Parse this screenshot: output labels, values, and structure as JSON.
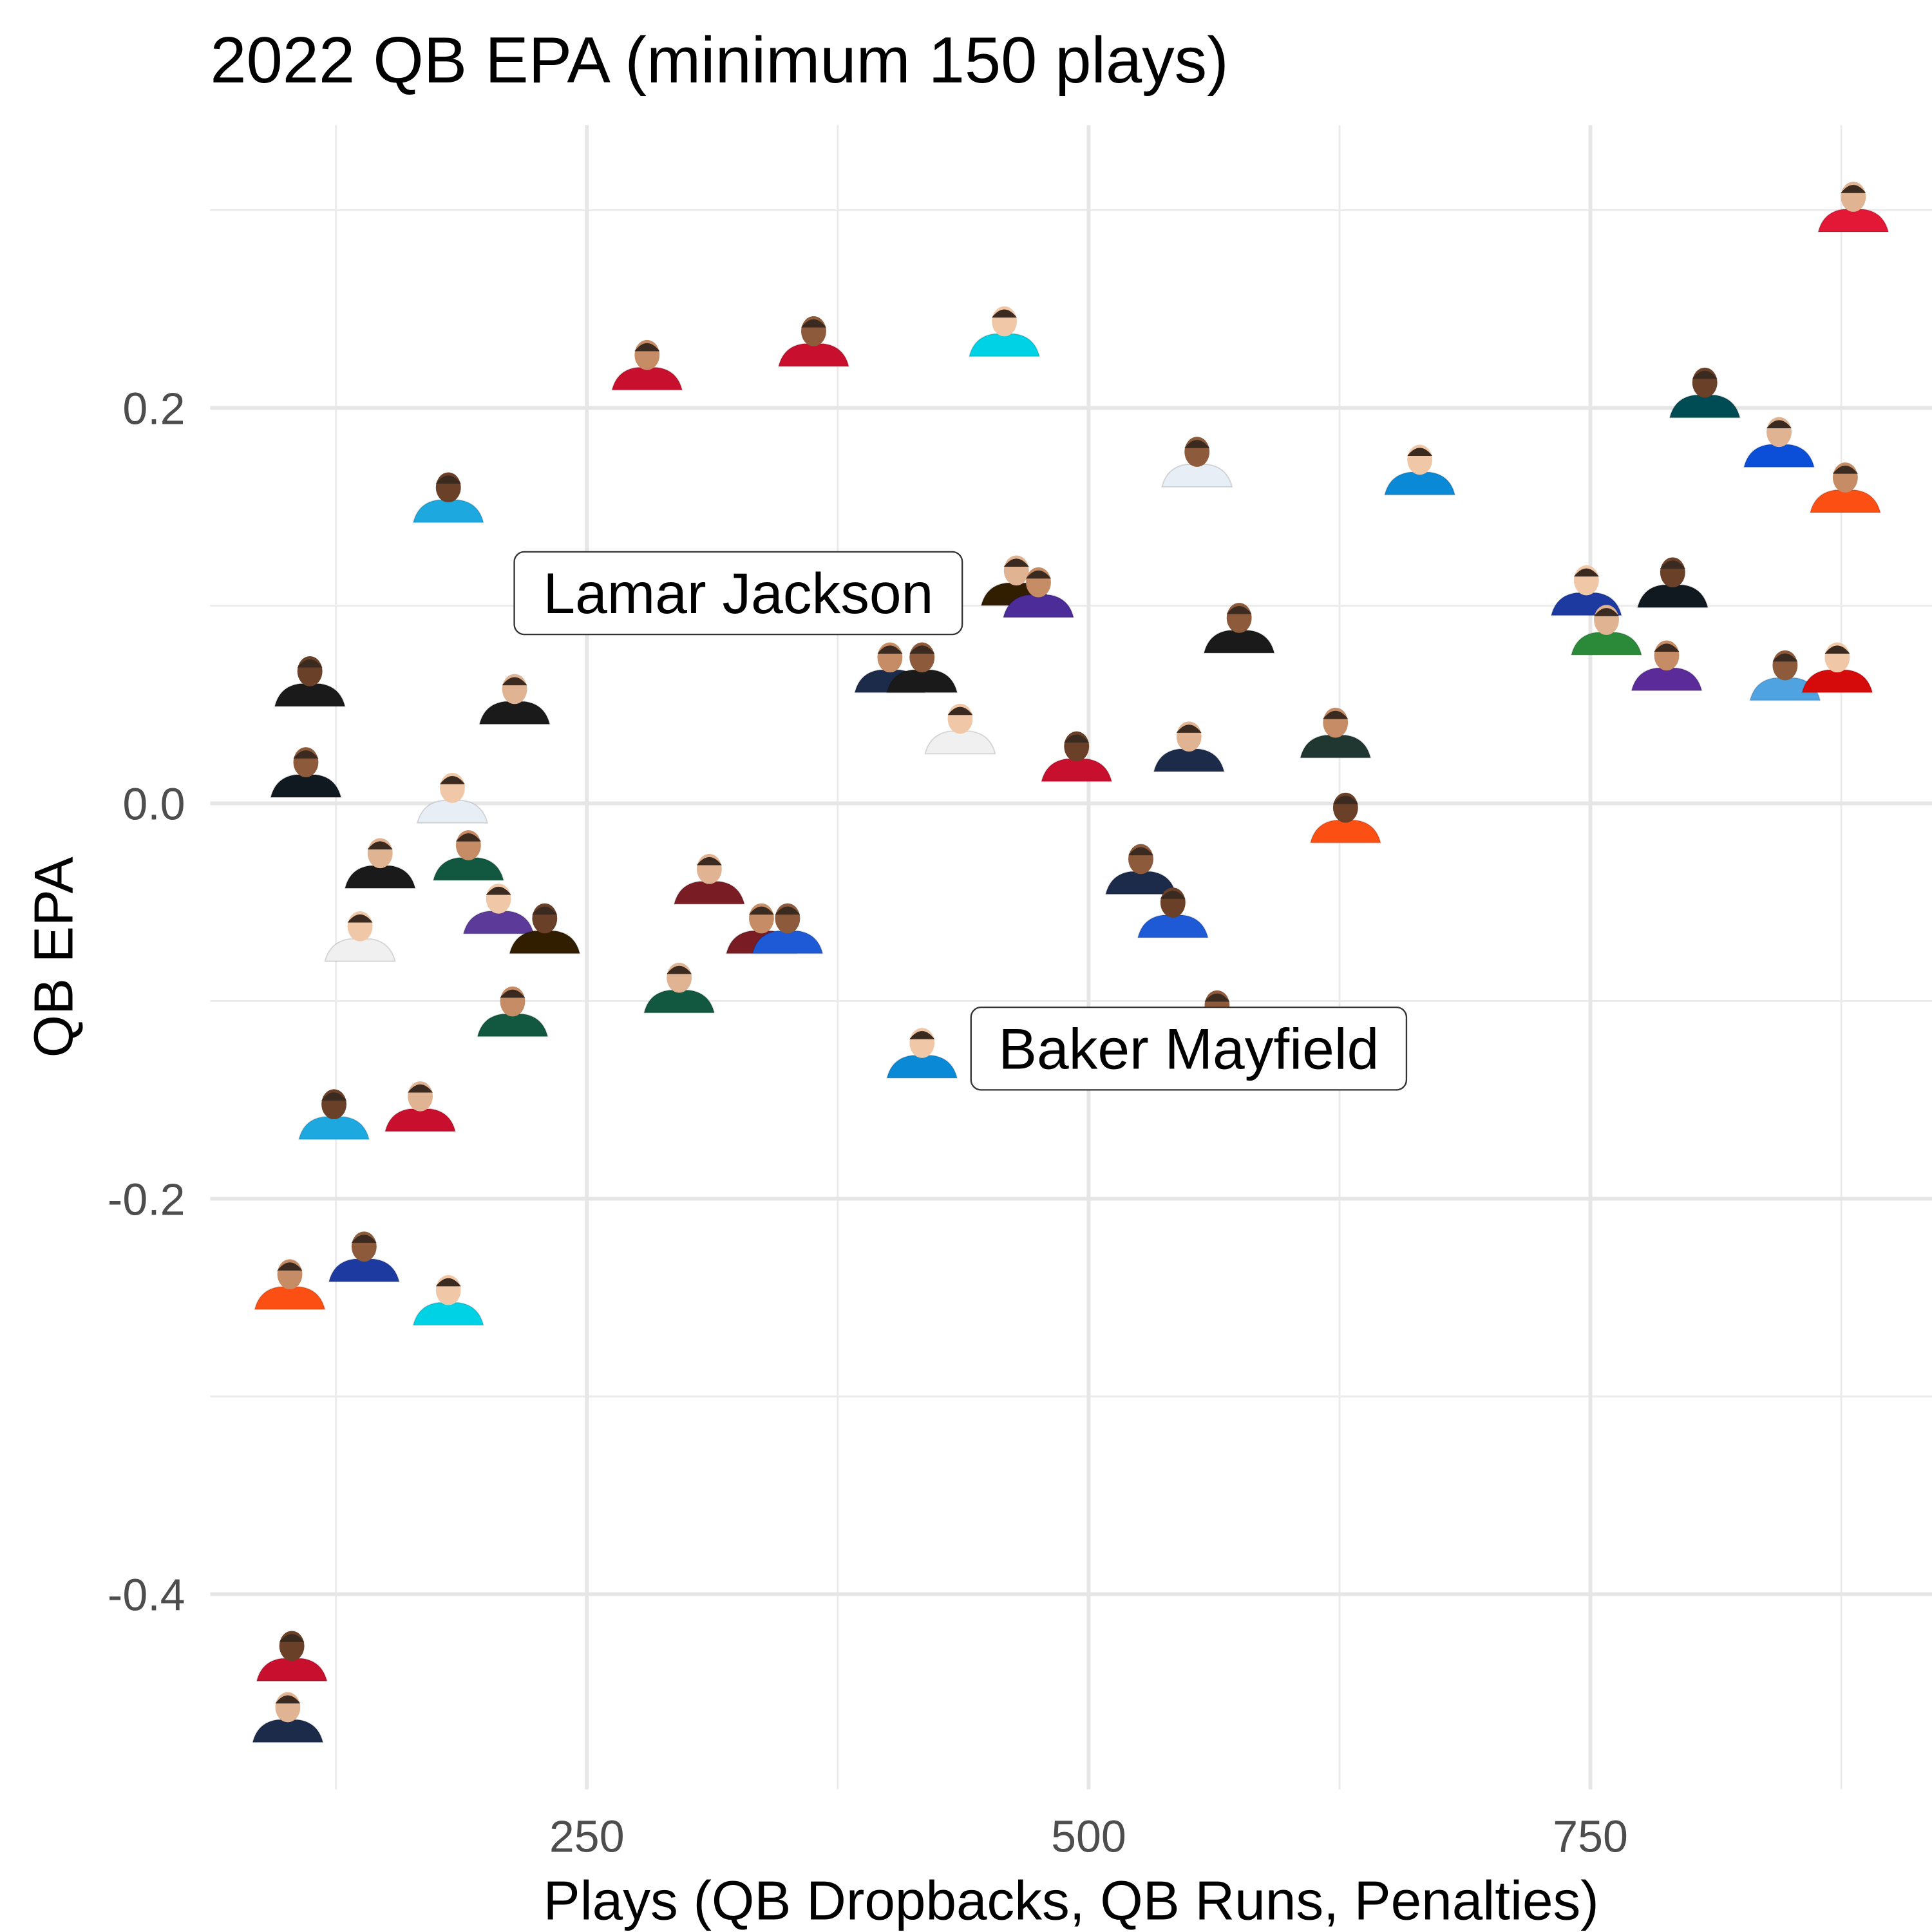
{
  "chart_data": {
    "type": "scatter",
    "title": "2022 QB EPA (minimum 150 plays)",
    "xlabel": "Plays (QB Dropbacks, QB Runs, Penalties)",
    "ylabel": "QB EPA",
    "xlim": [
      -42,
      900
    ],
    "ylim": [
      -0.49,
      0.35
    ],
    "xticks": [
      250,
      500,
      750
    ],
    "xtick_labels": [
      "250",
      "500",
      "750"
    ],
    "yticks": [
      0.2,
      0.0,
      -0.2,
      -0.4
    ],
    "ytick_labels": [
      "0.2",
      "0.0",
      "-0.2",
      "-0.4"
    ],
    "grid": true,
    "marker": "player headshot",
    "points": [
      {
        "x": 881,
        "y": 0.303,
        "color": "#e31837"
      },
      {
        "x": 280,
        "y": 0.223,
        "color": "#c8102e"
      },
      {
        "x": 363,
        "y": 0.235,
        "color": "#c8102e"
      },
      {
        "x": 458,
        "y": 0.24,
        "color": "#00d2e6"
      },
      {
        "x": 807,
        "y": 0.209,
        "color": "#004c54"
      },
      {
        "x": 844,
        "y": 0.184,
        "color": "#0b4fd8"
      },
      {
        "x": 877,
        "y": 0.161,
        "color": "#fb4f14"
      },
      {
        "x": 554,
        "y": 0.174,
        "color": "#e8eef6"
      },
      {
        "x": 665,
        "y": 0.17,
        "color": "#0a8ad6"
      },
      {
        "x": 181,
        "y": 0.156,
        "color": "#1ea8e0"
      },
      {
        "x": 464,
        "y": 0.114,
        "color": "#311d00"
      },
      {
        "x": 475,
        "y": 0.108,
        "color": "#4b2c99",
        "label": "Lamar Jackson"
      },
      {
        "x": 575,
        "y": 0.09,
        "color": "#1a1a1a"
      },
      {
        "x": 748,
        "y": 0.109,
        "color": "#1c3aa0"
      },
      {
        "x": 791,
        "y": 0.113,
        "color": "#101820"
      },
      {
        "x": 758,
        "y": 0.089,
        "color": "#2a8a3a"
      },
      {
        "x": 788,
        "y": 0.071,
        "color": "#5b2b9a"
      },
      {
        "x": 847,
        "y": 0.066,
        "color": "#4ea3e0"
      },
      {
        "x": 873,
        "y": 0.07,
        "color": "#d50a0a"
      },
      {
        "x": 112,
        "y": 0.063,
        "color": "#1a1a1a"
      },
      {
        "x": 214,
        "y": 0.054,
        "color": "#1a1a1a"
      },
      {
        "x": 401,
        "y": 0.07,
        "color": "#1d2b4a"
      },
      {
        "x": 417,
        "y": 0.07,
        "color": "#1a1a1a"
      },
      {
        "x": 436,
        "y": 0.039,
        "color": "#f0f0f0"
      },
      {
        "x": 494,
        "y": 0.025,
        "color": "#c8102e"
      },
      {
        "x": 550,
        "y": 0.03,
        "color": "#1d2b4a"
      },
      {
        "x": 623,
        "y": 0.037,
        "color": "#203731"
      },
      {
        "x": 110,
        "y": 0.017,
        "color": "#101820"
      },
      {
        "x": 183,
        "y": 0.004,
        "color": "#e8eef6"
      },
      {
        "x": 628,
        "y": -0.006,
        "color": "#fb4f14"
      },
      {
        "x": 147,
        "y": -0.029,
        "color": "#1a1a1a"
      },
      {
        "x": 191,
        "y": -0.025,
        "color": "#125740"
      },
      {
        "x": 526,
        "y": -0.032,
        "color": "#1d2b4a"
      },
      {
        "x": 206,
        "y": -0.052,
        "color": "#5b3a9a"
      },
      {
        "x": 229,
        "y": -0.062,
        "color": "#311d00"
      },
      {
        "x": 311,
        "y": -0.037,
        "color": "#7a1c24"
      },
      {
        "x": 337,
        "y": -0.062,
        "color": "#7a1c24"
      },
      {
        "x": 350,
        "y": -0.062,
        "color": "#1e5ad6"
      },
      {
        "x": 137,
        "y": -0.066,
        "color": "#f0f0f0"
      },
      {
        "x": 542,
        "y": -0.054,
        "color": "#1e5ad6"
      },
      {
        "x": 296,
        "y": -0.092,
        "color": "#125740"
      },
      {
        "x": 213,
        "y": -0.104,
        "color": "#125740"
      },
      {
        "x": 564,
        "y": -0.106,
        "color": "#c8102e"
      },
      {
        "x": 417,
        "y": -0.125,
        "color": "#0a8ad6",
        "label": "Baker Mayfield"
      },
      {
        "x": 124,
        "y": -0.156,
        "color": "#1ea8e0"
      },
      {
        "x": 167,
        "y": -0.152,
        "color": "#c8102e"
      },
      {
        "x": 102,
        "y": -0.242,
        "color": "#fb4f14"
      },
      {
        "x": 139,
        "y": -0.228,
        "color": "#1c3aa0"
      },
      {
        "x": 181,
        "y": -0.25,
        "color": "#00d2e6"
      },
      {
        "x": 103,
        "y": -0.43,
        "color": "#c8102e"
      },
      {
        "x": 101,
        "y": -0.461,
        "color": "#1d2b4a"
      }
    ]
  }
}
